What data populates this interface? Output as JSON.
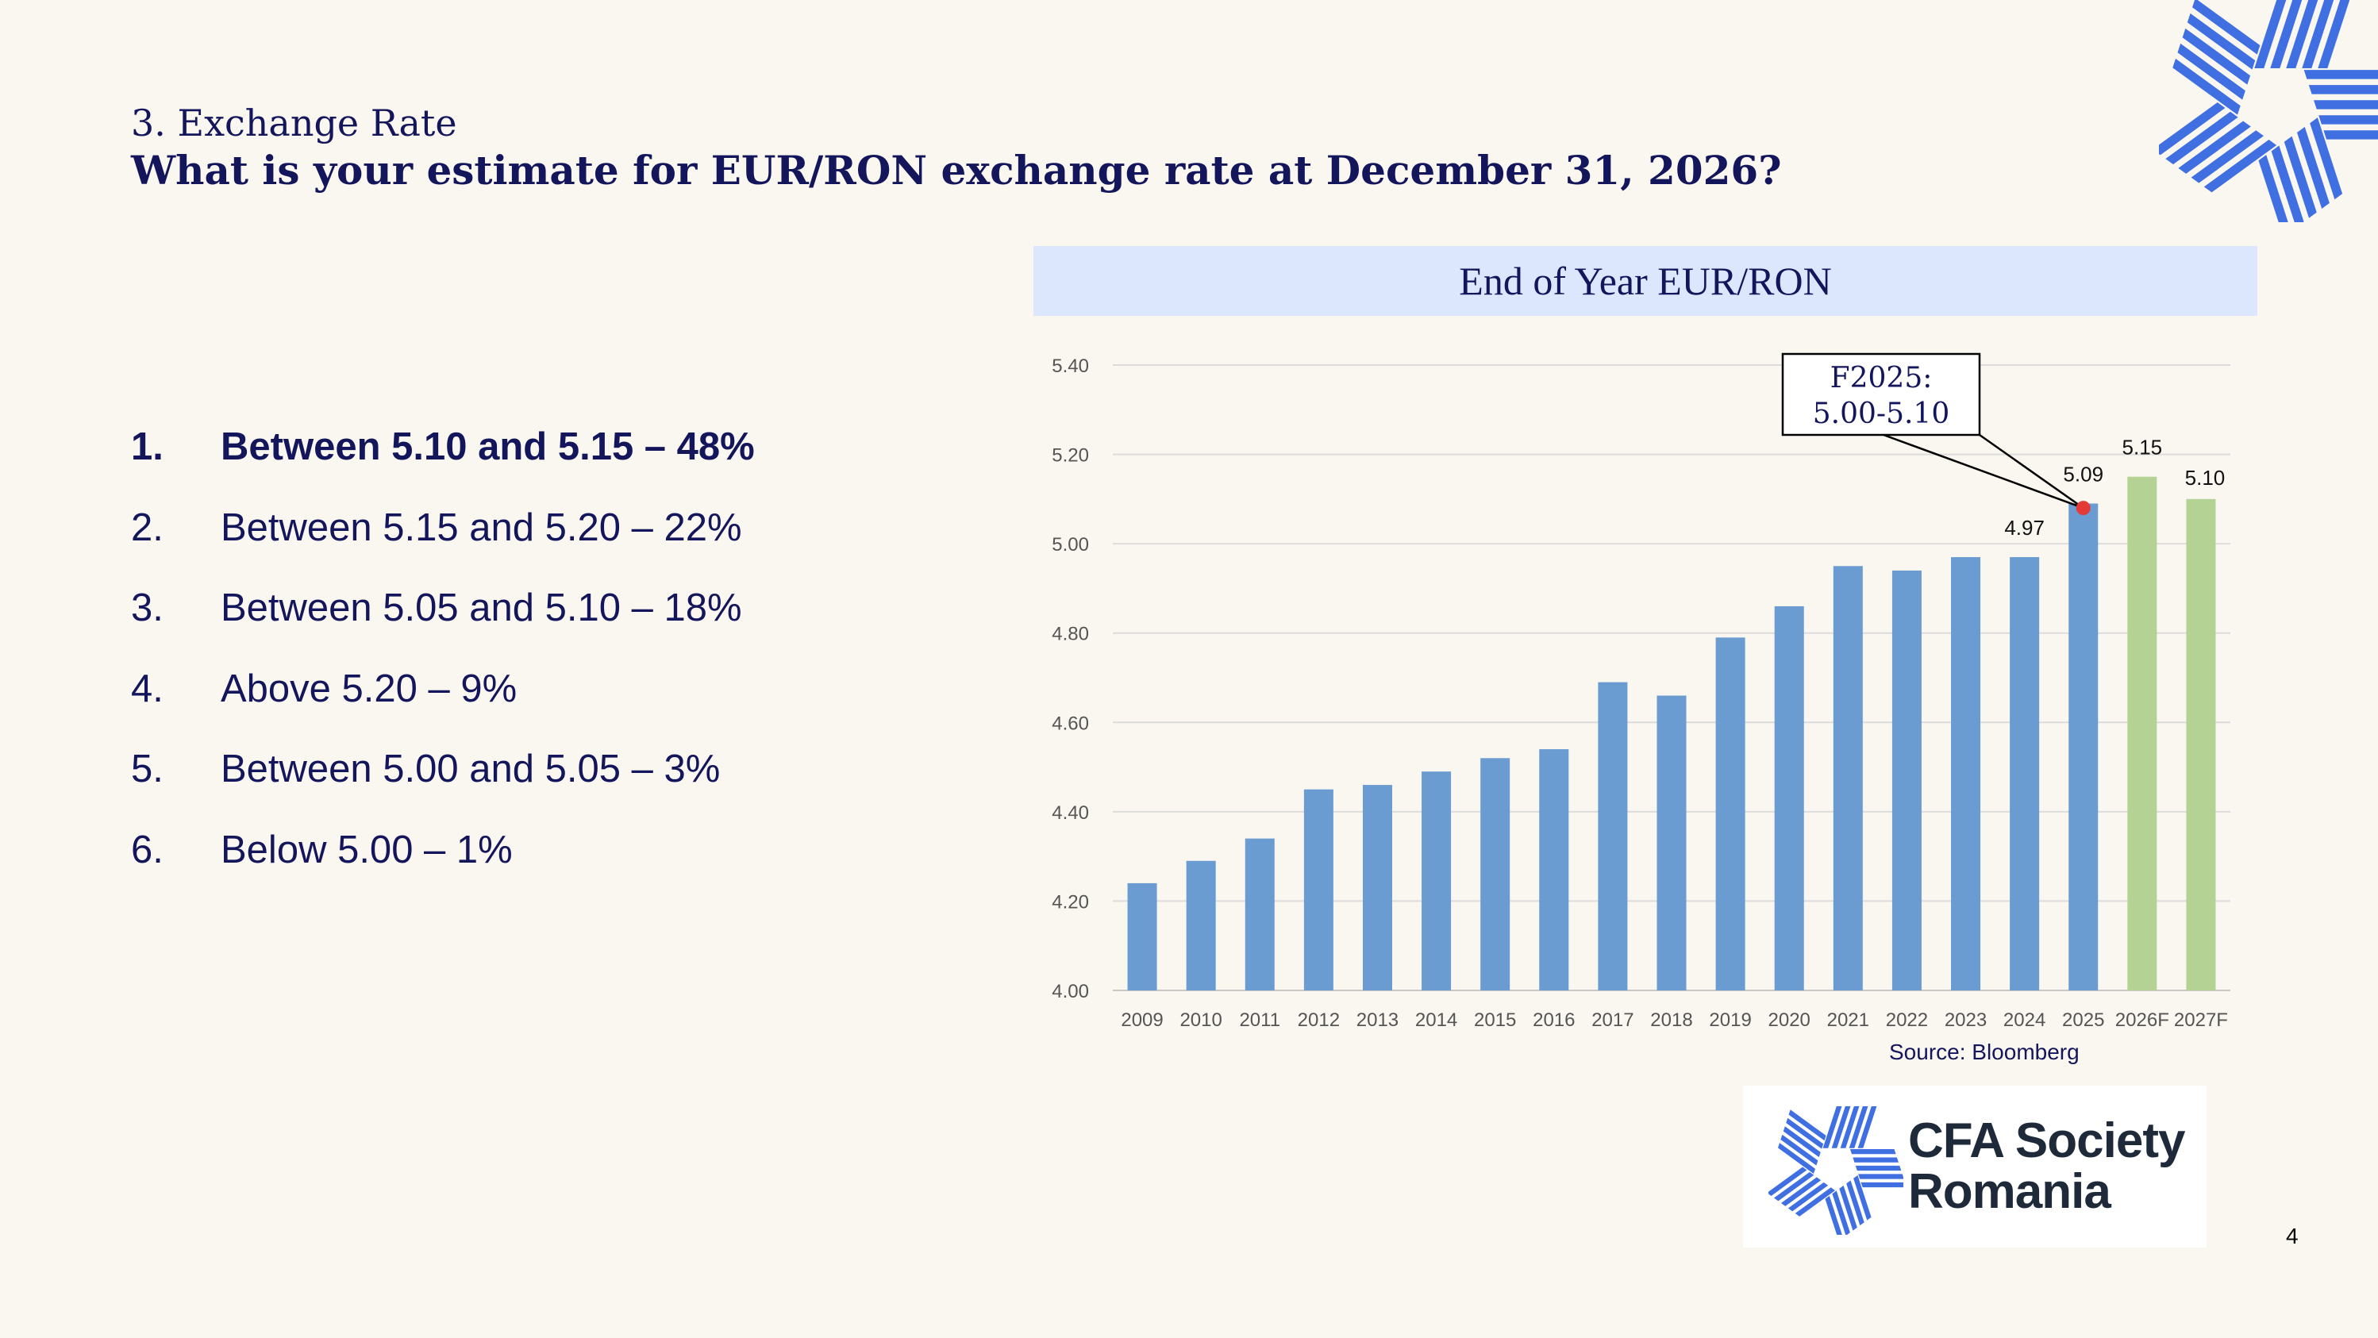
{
  "slide": {
    "subtitle": "3. Exchange Rate",
    "question": "What is your estimate for EUR/RON exchange rate at December 31, 2026?",
    "page_number": "4"
  },
  "results": [
    {
      "number": "1.",
      "text": "Between 5.10 and 5.15 – 48%",
      "bold": true
    },
    {
      "number": "2.",
      "text": "Between 5.15 and 5.20 – 22%",
      "bold": false
    },
    {
      "number": "3.",
      "text": "Between 5.05 and 5.10 – 18%",
      "bold": false
    },
    {
      "number": "4.",
      "text": "Above 5.20 – 9%",
      "bold": false
    },
    {
      "number": "5.",
      "text": "Between 5.00 and 5.05 – 3%",
      "bold": false
    },
    {
      "number": "6.",
      "text": "Below 5.00 – 1%",
      "bold": false
    }
  ],
  "chart_data": {
    "type": "bar",
    "title": "End of Year EUR/RON",
    "categories": [
      "2009",
      "2010",
      "2011",
      "2012",
      "2013",
      "2014",
      "2015",
      "2016",
      "2017",
      "2018",
      "2019",
      "2020",
      "2021",
      "2022",
      "2023",
      "2024",
      "2025",
      "2026F",
      "2027F"
    ],
    "values": [
      4.24,
      4.29,
      4.34,
      4.45,
      4.46,
      4.49,
      4.52,
      4.54,
      4.69,
      4.66,
      4.79,
      4.86,
      4.95,
      4.94,
      4.97,
      4.97,
      5.09,
      5.15,
      5.1
    ],
    "bar_colors": [
      "#6a9bd1",
      "#6a9bd1",
      "#6a9bd1",
      "#6a9bd1",
      "#6a9bd1",
      "#6a9bd1",
      "#6a9bd1",
      "#6a9bd1",
      "#6a9bd1",
      "#6a9bd1",
      "#6a9bd1",
      "#6a9bd1",
      "#6a9bd1",
      "#6a9bd1",
      "#6a9bd1",
      "#6a9bd1",
      "#6a9bd1",
      "#b3d293",
      "#b3d293"
    ],
    "data_labels": {
      "15": "4.97",
      "16": "5.09",
      "17": "5.15",
      "18": "5.10"
    },
    "yticks": [
      "4.00",
      "4.20",
      "4.40",
      "4.60",
      "4.80",
      "5.00",
      "5.20",
      "5.40"
    ],
    "ylim": [
      4.0,
      5.4
    ],
    "grid": true,
    "annotation": {
      "line1": "F2025:",
      "line2": "5.00-5.10",
      "marker_value": 5.08,
      "marker_index": 16,
      "marker_color": "#e53935"
    },
    "source": "Source: Bloomberg"
  },
  "logo": {
    "line1": "CFA Society",
    "line2": "Romania",
    "color": "#3f6fe0"
  }
}
